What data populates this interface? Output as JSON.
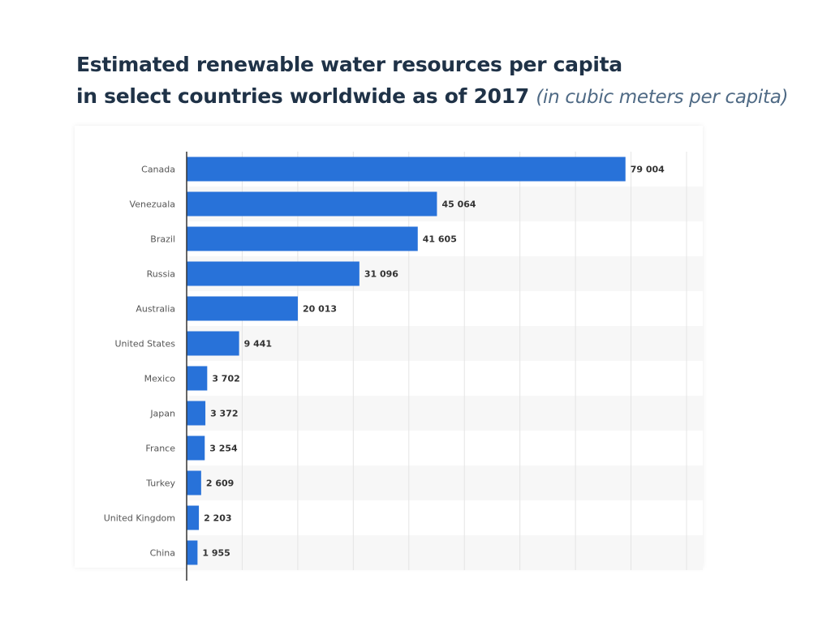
{
  "title": "Estimated renewable water resources per capita",
  "title_line2": "in select countries worldwide as of 2017",
  "unit_note": "(in cubic meters per capita)",
  "colors": {
    "bar": "#2872d9",
    "row_shade": "#f7f7f7",
    "grid": "#e4e4e4"
  },
  "chart_data": {
    "type": "bar",
    "orientation": "horizontal",
    "categories": [
      "Canada",
      "Venezuala",
      "Brazil",
      "Russia",
      "Australia",
      "United States",
      "Mexico",
      "Japan",
      "France",
      "Turkey",
      "United Kingdom",
      "China"
    ],
    "values": [
      79004,
      45064,
      41605,
      31096,
      20013,
      9441,
      3702,
      3372,
      3254,
      2609,
      2203,
      1955
    ],
    "data_labels": [
      "79 004",
      "45 064",
      "41 605",
      "31 096",
      "20 013",
      "9 441",
      "3 702",
      "3 372",
      "3 254",
      "2 609",
      "2 203",
      "1 955"
    ],
    "xlim": [
      0,
      90000
    ],
    "grid": true,
    "xlabel": "",
    "ylabel": ""
  }
}
